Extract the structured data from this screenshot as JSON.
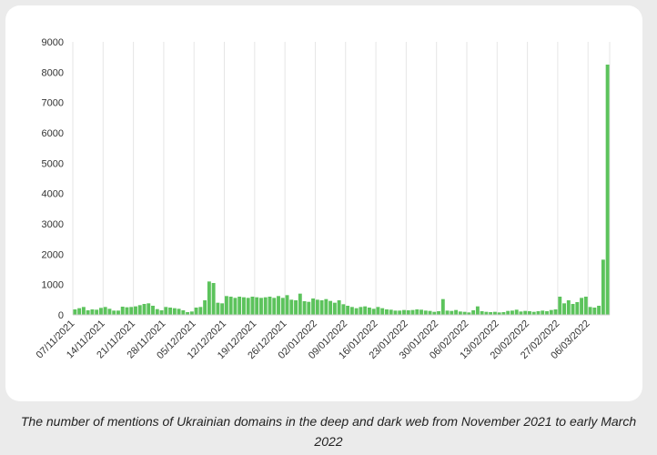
{
  "caption": "The number of mentions of Ukrainian domains in the deep and dark web from November 2021 to early March 2022",
  "chart_data": {
    "type": "bar",
    "title": "",
    "xlabel": "",
    "ylabel": "",
    "ylim": [
      0,
      9000
    ],
    "yticks": [
      0,
      1000,
      2000,
      3000,
      4000,
      5000,
      6000,
      7000,
      8000,
      9000
    ],
    "grid": "vertical",
    "bar_color": "#5cc35c",
    "x_tick_labels": [
      "07/11/2021",
      "14/11/2021",
      "21/11/2021",
      "28/11/2021",
      "05/12/2021",
      "12/12/2021",
      "19/12/2021",
      "26/12/2021",
      "02/01/2022",
      "09/01/2022",
      "16/01/2022",
      "23/01/2022",
      "30/01/2022",
      "06/02/2022",
      "13/02/2022",
      "20/02/2022",
      "27/02/2022",
      "06/03/2022"
    ],
    "values": [
      180,
      220,
      260,
      150,
      180,
      170,
      230,
      260,
      200,
      140,
      140,
      270,
      250,
      260,
      280,
      320,
      360,
      380,
      300,
      190,
      150,
      260,
      240,
      220,
      200,
      150,
      90,
      110,
      240,
      260,
      480,
      1100,
      1050,
      400,
      380,
      620,
      600,
      560,
      600,
      580,
      560,
      600,
      580,
      560,
      580,
      600,
      560,
      620,
      560,
      650,
      500,
      480,
      700,
      450,
      430,
      540,
      500,
      480,
      520,
      460,
      400,
      480,
      350,
      300,
      260,
      220,
      260,
      280,
      240,
      200,
      260,
      220,
      180,
      170,
      140,
      140,
      160,
      150,
      160,
      180,
      170,
      140,
      130,
      100,
      120,
      520,
      140,
      130,
      160,
      110,
      100,
      80,
      150,
      280,
      120,
      100,
      90,
      100,
      80,
      90,
      130,
      140,
      170,
      110,
      130,
      120,
      100,
      120,
      140,
      120,
      160,
      180,
      600,
      380,
      480,
      360,
      420,
      560,
      600,
      260,
      240,
      300,
      1820,
      8250
    ]
  }
}
